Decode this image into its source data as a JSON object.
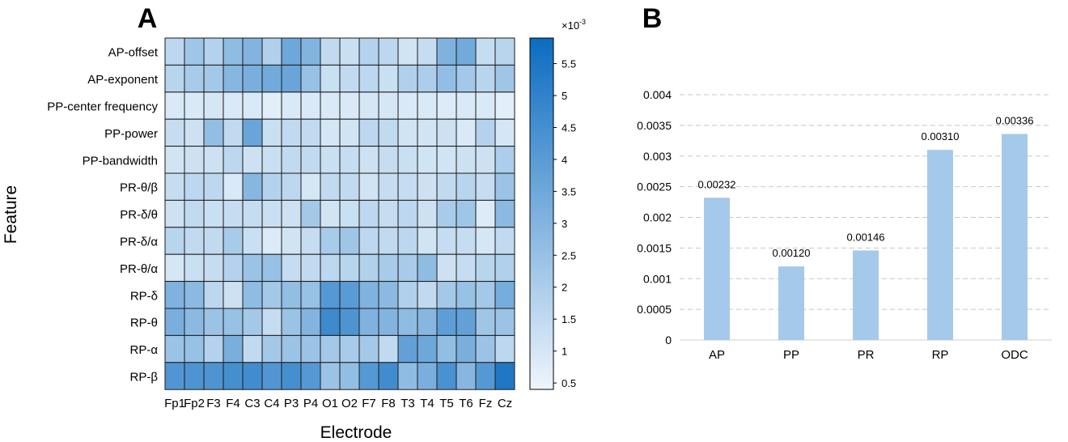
{
  "panel_a": {
    "letter": "A",
    "chart_data": {
      "type": "heatmap",
      "xlabel": "Electrode",
      "ylabel": "Feature",
      "x_categories": [
        "Fp1",
        "Fp2",
        "F3",
        "F4",
        "C3",
        "C4",
        "P3",
        "P4",
        "O1",
        "O2",
        "F7",
        "F8",
        "T3",
        "T4",
        "T5",
        "T6",
        "Fz",
        "Cz"
      ],
      "y_categories": [
        "AP-offset",
        "AP-exponent",
        "PP-center frequency",
        "PP-power",
        "PP-bandwidth",
        "PR-θ/β",
        "PR-δ/θ",
        "PR-δ/α",
        "PR-θ/α",
        "RP-δ",
        "RP-θ",
        "RP-α",
        "RP-β"
      ],
      "colorbar": {
        "scale_label": "×10",
        "scale_exponent": "-3",
        "ticks": [
          "5.5",
          "5",
          "4.5",
          "4",
          "3.5",
          "3",
          "2.5",
          "2",
          "1.5",
          "1",
          "0.5"
        ],
        "tick_values": [
          5.5,
          5,
          4.5,
          4,
          3.5,
          3,
          2.5,
          2,
          1.5,
          1,
          0.5
        ],
        "range": [
          0.4,
          5.9
        ],
        "color_low": "#eef5fc",
        "color_high": "#0b6cc0"
      },
      "values": [
        [
          1.6,
          2.3,
          1.8,
          2.7,
          3.0,
          1.9,
          3.5,
          3.0,
          1.5,
          1.3,
          1.8,
          1.6,
          1.1,
          1.4,
          3.1,
          3.4,
          1.4,
          1.7
        ],
        [
          1.7,
          2.1,
          2.2,
          2.9,
          3.2,
          3.4,
          3.6,
          2.5,
          1.3,
          1.5,
          1.6,
          1.3,
          1.9,
          2.0,
          2.6,
          2.2,
          1.7,
          2.3
        ],
        [
          0.9,
          0.9,
          1.0,
          0.9,
          0.9,
          0.7,
          0.9,
          0.9,
          0.9,
          0.9,
          1.0,
          1.0,
          0.9,
          0.9,
          0.8,
          0.9,
          0.9,
          0.7
        ],
        [
          1.4,
          1.2,
          2.6,
          1.5,
          3.6,
          1.3,
          1.5,
          1.5,
          1.0,
          1.1,
          1.6,
          1.5,
          1.1,
          1.1,
          1.2,
          0.9,
          1.8,
          1.0
        ],
        [
          1.1,
          1.2,
          1.2,
          1.6,
          1.2,
          1.3,
          1.5,
          1.5,
          1.3,
          1.4,
          1.2,
          1.4,
          1.3,
          1.1,
          1.1,
          1.2,
          1.2,
          2.0
        ],
        [
          1.4,
          1.6,
          1.6,
          0.9,
          2.9,
          1.8,
          1.6,
          1.0,
          1.5,
          1.5,
          1.1,
          1.4,
          1.4,
          1.2,
          1.5,
          1.7,
          1.4,
          2.4
        ],
        [
          1.2,
          1.5,
          1.3,
          1.4,
          1.4,
          1.3,
          1.2,
          2.2,
          1.1,
          1.3,
          1.6,
          1.4,
          1.6,
          1.2,
          2.1,
          2.3,
          0.8,
          2.8
        ],
        [
          1.7,
          1.5,
          1.5,
          2.1,
          1.3,
          0.8,
          1.1,
          1.4,
          2.1,
          2.3,
          1.6,
          1.5,
          1.6,
          1.1,
          1.4,
          1.4,
          1.0,
          1.5
        ],
        [
          1.0,
          1.3,
          1.4,
          1.8,
          2.4,
          2.5,
          1.4,
          1.5,
          1.6,
          1.7,
          1.9,
          2.1,
          2.1,
          2.7,
          1.2,
          1.4,
          1.7,
          1.9
        ],
        [
          3.1,
          2.8,
          1.6,
          1.2,
          2.7,
          2.2,
          2.6,
          2.5,
          4.1,
          4.0,
          3.1,
          2.8,
          1.9,
          1.5,
          2.2,
          2.5,
          2.2,
          3.3
        ],
        [
          3.2,
          2.8,
          2.4,
          2.5,
          2.2,
          1.4,
          2.4,
          3.0,
          4.7,
          4.3,
          3.1,
          3.0,
          2.7,
          2.9,
          3.9,
          3.8,
          2.3,
          2.4
        ],
        [
          2.4,
          2.5,
          1.8,
          3.2,
          1.5,
          2.2,
          2.4,
          2.4,
          2.2,
          2.1,
          2.2,
          1.5,
          3.8,
          3.5,
          2.6,
          3.2,
          2.4,
          1.6
        ],
        [
          4.2,
          4.3,
          4.3,
          4.5,
          4.6,
          4.2,
          4.5,
          4.1,
          2.4,
          2.6,
          4.1,
          4.6,
          2.7,
          3.2,
          4.4,
          2.9,
          4.1,
          5.4
        ]
      ]
    }
  },
  "panel_b": {
    "letter": "B",
    "chart_data": {
      "type": "bar",
      "title": "",
      "xlabel": "",
      "ylabel": "",
      "categories": [
        "AP",
        "PP",
        "PR",
        "RP",
        "ODC"
      ],
      "values": [
        0.00232,
        0.0012,
        0.00146,
        0.0031,
        0.00336
      ],
      "value_labels": [
        "0.00232",
        "0.00120",
        "0.00146",
        "0.00310",
        "0.00336"
      ],
      "ylim": [
        0,
        0.004
      ],
      "yticks": [
        0,
        0.0005,
        0.001,
        0.0015,
        0.002,
        0.0025,
        0.003,
        0.0035,
        0.004
      ],
      "ytick_labels": [
        "0",
        "0.0005",
        "0.001",
        "0.0015",
        "0.002",
        "0.0025",
        "0.003",
        "0.0035",
        "0.004"
      ],
      "bar_color": "#a5c9eb",
      "grid": true
    }
  }
}
